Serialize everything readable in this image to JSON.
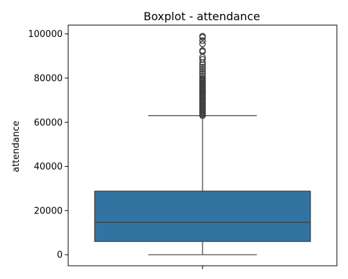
{
  "chart_data": {
    "type": "box",
    "title": "Boxplot - attendance",
    "xlabel": "",
    "ylabel": "attendance",
    "ylim": [
      -5000,
      104000
    ],
    "yticks": [
      0,
      20000,
      40000,
      60000,
      80000,
      100000
    ],
    "ytick_labels": [
      "0",
      "20000",
      "40000",
      "60000",
      "80000",
      "100000"
    ],
    "grid": false,
    "box": {
      "min": 0,
      "q1": 6000,
      "median": 14700,
      "q3": 28800,
      "max_whisker": 63000,
      "outliers": [
        63000,
        63500,
        64000,
        64500,
        65000,
        65500,
        66000,
        66500,
        67000,
        67500,
        68000,
        68500,
        69000,
        69500,
        70000,
        70500,
        71000,
        71500,
        72000,
        72500,
        73000,
        73500,
        74000,
        74500,
        75000,
        75500,
        76000,
        76500,
        77000,
        77500,
        78000,
        78500,
        79000,
        79500,
        80000,
        81000,
        82000,
        83000,
        84000,
        85000,
        86000,
        87000,
        88500,
        89500,
        92000,
        92500,
        95500,
        97000,
        98500,
        99000
      ],
      "fill": "#3274a1",
      "line": "#3d3d3d"
    }
  }
}
